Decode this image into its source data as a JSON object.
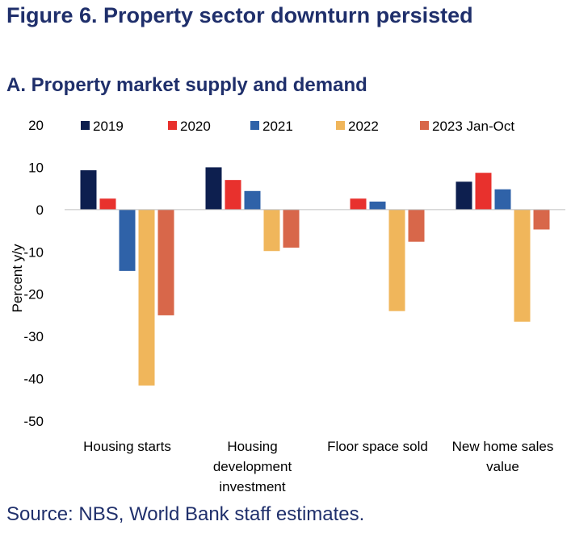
{
  "figure_title": "Figure 6. Property sector downturn persisted",
  "source": "Source: NBS, World Bank staff estimates.",
  "chart_data": {
    "type": "bar",
    "title": "A. Property market supply and demand",
    "xlabel": "",
    "ylabel": "Percent y/y",
    "ylim": [
      -50,
      20
    ],
    "yticks": [
      20,
      10,
      0,
      -10,
      -20,
      -30,
      -40,
      -50
    ],
    "ytick_labels": [
      "20",
      "10",
      "0",
      "-10",
      "-20",
      "-30",
      "-40",
      "-50"
    ],
    "categories": [
      [
        "Housing starts"
      ],
      [
        "Housing",
        "development",
        "investment"
      ],
      [
        "Floor space sold"
      ],
      [
        "New home sales",
        "value"
      ]
    ],
    "series": [
      {
        "name": "2019",
        "color": "#0d1f4f",
        "values": [
          9.3,
          10.0,
          null,
          6.6
        ]
      },
      {
        "name": "2020",
        "color": "#e8312d",
        "values": [
          2.6,
          7.0,
          2.6,
          8.7
        ]
      },
      {
        "name": "2021",
        "color": "#2f62a8",
        "values": [
          -14.5,
          4.4,
          1.9,
          4.8
        ]
      },
      {
        "name": "2022",
        "color": "#f0b65b",
        "values": [
          -41.6,
          -9.8,
          -24.0,
          -26.5
        ]
      },
      {
        "name": "2023 Jan-Oct",
        "color": "#d8674a",
        "values": [
          -25.0,
          -9.0,
          -7.6,
          -4.7
        ]
      }
    ],
    "legend_position": "top"
  }
}
